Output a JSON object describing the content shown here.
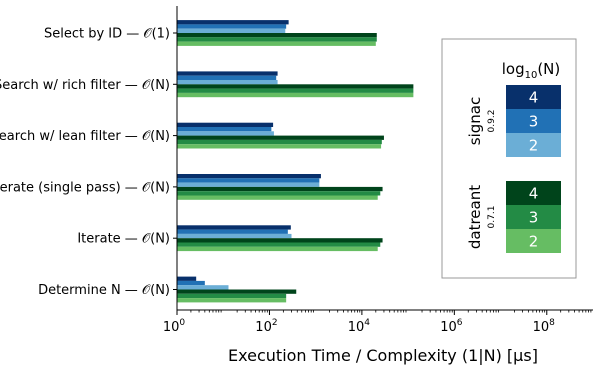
{
  "chart_data": {
    "type": "bar",
    "orientation": "horizontal",
    "x_scale": "log",
    "xlim": [
      1,
      1000000000
    ],
    "xlabel": "Execution Time / Complexity (1|N) [µs]",
    "xticks": [
      {
        "value": 1,
        "label": "10",
        "exp": "0"
      },
      {
        "value": 100,
        "label": "10",
        "exp": "2"
      },
      {
        "value": 10000,
        "label": "10",
        "exp": "4"
      },
      {
        "value": 1000000,
        "label": "10",
        "exp": "6"
      },
      {
        "value": 100000000,
        "label": "10",
        "exp": "8"
      }
    ],
    "categories": [
      "Select by ID — 𝒪(1)",
      "Search w/ rich filter — 𝒪(N)",
      "Search w/ lean filter — 𝒪(N)",
      "Iterate (single pass) — 𝒪(N)",
      "Iterate — 𝒪(N)",
      "Determine N — 𝒪(N)"
    ],
    "series": [
      {
        "name": "signac 0.9.2, log10(N)=4",
        "color": "#08306b",
        "values": [
          260,
          150,
          120,
          1300,
          290,
          2.6
        ]
      },
      {
        "name": "signac 0.9.2, log10(N)=3",
        "color": "#2171b5",
        "values": [
          230,
          140,
          110,
          1200,
          250,
          4
        ]
      },
      {
        "name": "signac 0.9.2, log10(N)=2",
        "color": "#6baed6",
        "values": [
          220,
          150,
          125,
          1200,
          300,
          13
        ]
      },
      {
        "name": "datreant 0.7.1, log10(N)=4",
        "color": "#00441b",
        "values": [
          21000,
          130000,
          30000,
          28000,
          28000,
          380
        ]
      },
      {
        "name": "datreant 0.7.1, log10(N)=3",
        "color": "#238b45",
        "values": [
          21000,
          130000,
          27000,
          25000,
          25000,
          230
        ]
      },
      {
        "name": "datreant 0.7.1, log10(N)=2",
        "color": "#66bd63",
        "values": [
          20000,
          130000,
          26000,
          22000,
          22000,
          230
        ]
      }
    ],
    "legend": {
      "title": "log10(N)",
      "title_base": "log",
      "title_sub": "10",
      "title_rest": "(N)",
      "placement": "right",
      "groups": [
        {
          "name": "signac",
          "version": "0.9.2",
          "colors": [
            "#08306b",
            "#2171b5",
            "#6baed6"
          ],
          "levels": [
            "4",
            "3",
            "2"
          ]
        },
        {
          "name": "datreant",
          "version": "0.7.1",
          "colors": [
            "#00441b",
            "#238b45",
            "#66bd63"
          ],
          "levels": [
            "4",
            "3",
            "2"
          ]
        }
      ]
    }
  }
}
